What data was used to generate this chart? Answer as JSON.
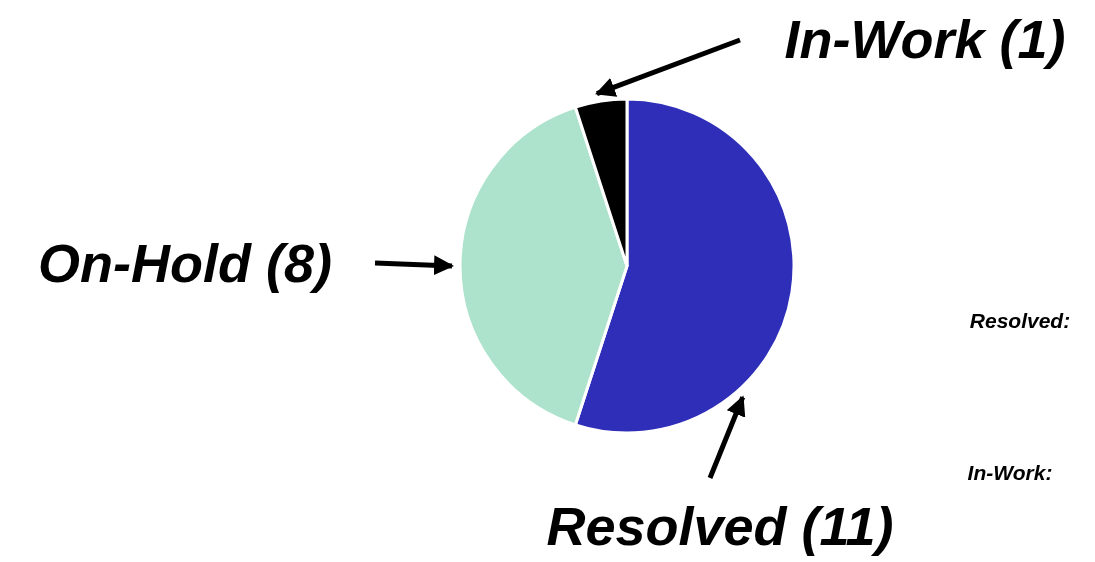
{
  "chart_data": {
    "type": "pie",
    "categories": [
      "Resolved (11)",
      "On-Hold (8)",
      "In-Work (1)"
    ],
    "values": [
      11,
      8,
      1
    ],
    "colors": [
      "#2e2eb8",
      "#ade3cc",
      "#000000"
    ],
    "annotations": [
      "Resolved:",
      "In-Work:"
    ]
  }
}
